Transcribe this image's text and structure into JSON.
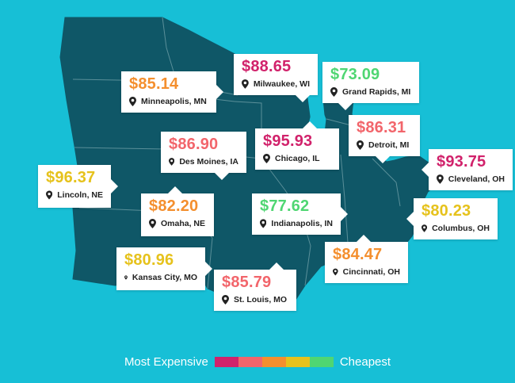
{
  "colors": {
    "background": "#17bfd6",
    "map_fill": "#0f5767",
    "map_border": "#5a8f99",
    "water": "#17bfd6",
    "scale": [
      "#d1226b",
      "#f2656b",
      "#f48f2e",
      "#e6c21c",
      "#4fd672"
    ]
  },
  "cities": [
    {
      "id": "minneapolis",
      "price": "$85.14",
      "name": "Minneapolis, MN",
      "color": "#f48f2e"
    },
    {
      "id": "milwaukee",
      "price": "$88.65",
      "name": "Milwaukee, WI",
      "color": "#d1226b"
    },
    {
      "id": "grand-rapids",
      "price": "$73.09",
      "name": "Grand Rapids, MI",
      "color": "#4fd672"
    },
    {
      "id": "des-moines",
      "price": "$86.90",
      "name": "Des Moines, IA",
      "color": "#f2656b"
    },
    {
      "id": "chicago",
      "price": "$95.93",
      "name": "Chicago, IL",
      "color": "#d1226b"
    },
    {
      "id": "detroit",
      "price": "$86.31",
      "name": "Detroit, MI",
      "color": "#f2656b"
    },
    {
      "id": "lincoln",
      "price": "$96.37",
      "name": "Lincoln, NE",
      "color": "#e6c21c"
    },
    {
      "id": "cleveland",
      "price": "$93.75",
      "name": "Cleveland, OH",
      "color": "#d1226b"
    },
    {
      "id": "omaha",
      "price": "$82.20",
      "name": "Omaha, NE",
      "color": "#f48f2e"
    },
    {
      "id": "indianapolis",
      "price": "$77.62",
      "name": "Indianapolis, IN",
      "color": "#4fd672"
    },
    {
      "id": "columbus",
      "price": "$80.23",
      "name": "Columbus, OH",
      "color": "#e6c21c"
    },
    {
      "id": "kansas-city",
      "price": "$80.96",
      "name": "Kansas City, MO",
      "color": "#e6c21c"
    },
    {
      "id": "cincinnati",
      "price": "$84.47",
      "name": "Cincinnati, OH",
      "color": "#f48f2e"
    },
    {
      "id": "st-louis",
      "price": "$85.79",
      "name": "St. Louis, MO",
      "color": "#f2656b"
    }
  ],
  "legend": {
    "most_label": "Most Expensive",
    "least_label": "Cheapest"
  }
}
